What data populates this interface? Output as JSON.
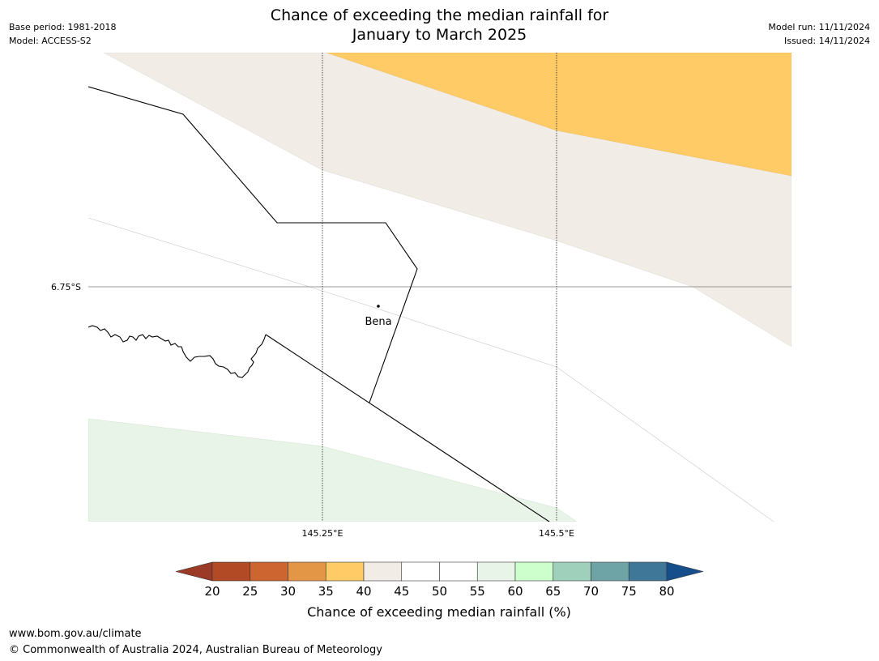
{
  "title": "Chance of exceeding the median rainfall for\nJanuary to March 2025",
  "meta_left": {
    "base_period": "Base period: 1981-2018",
    "model": "Model: ACCESS-S2"
  },
  "meta_right": {
    "model_run": "Model run: 11/11/2024",
    "issued": "Issued: 14/11/2024"
  },
  "map": {
    "lat_label": "6.75°S",
    "lon_labels": [
      "145.25°E",
      "145.5°E"
    ],
    "place": "Bena"
  },
  "colorbar": {
    "label": "Chance of exceeding median rainfall (%)",
    "ticks": [
      "20",
      "25",
      "30",
      "35",
      "40",
      "45",
      "50",
      "55",
      "60",
      "65",
      "70",
      "75",
      "80"
    ],
    "under_color": "#9b3a26",
    "colors": [
      "#b14a25",
      "#cd6530",
      "#e39746",
      "#ffcb66",
      "#f1ece6",
      "#ffffff",
      "#ffffff",
      "#e9f4e8",
      "#ccffcc",
      "#9fd0bb",
      "#6ea4a6",
      "#3f7799"
    ],
    "over_color": "#154e8a"
  },
  "footer": {
    "url": "www.bom.gov.au/climate",
    "copyright": "© Commonwealth of Australia 2024, Australian Bureau of Meteorology"
  }
}
